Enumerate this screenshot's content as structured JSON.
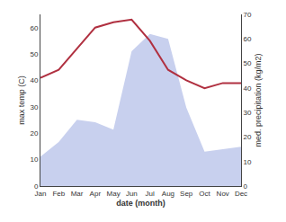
{
  "chart_data": {
    "type": "line",
    "categories": [
      "Jan",
      "Feb",
      "Mar",
      "Apr",
      "May",
      "Jun",
      "Jul",
      "Aug",
      "Sep",
      "Oct",
      "Nov",
      "Dec"
    ],
    "xlabel": "date (month)",
    "ylabel": "max temp (C)",
    "y2label": "med. precipitation (kg/m2)",
    "ylim": [
      0,
      65
    ],
    "yticks": [
      0,
      10,
      20,
      30,
      40,
      50,
      60
    ],
    "y2lim": [
      0,
      70
    ],
    "y2ticks": [
      0,
      10,
      20,
      30,
      40,
      50,
      60,
      70
    ],
    "grid": false,
    "series": [
      {
        "type": "area",
        "axis": "y2",
        "color": "#c8d0ee",
        "values": [
          12,
          18,
          27,
          26,
          23,
          55,
          62,
          60,
          32,
          14,
          15,
          16
        ]
      },
      {
        "type": "line",
        "color": "#b03040",
        "values": [
          41,
          44,
          52,
          60,
          62,
          63,
          55,
          44,
          40,
          37,
          39,
          39
        ]
      }
    ]
  }
}
